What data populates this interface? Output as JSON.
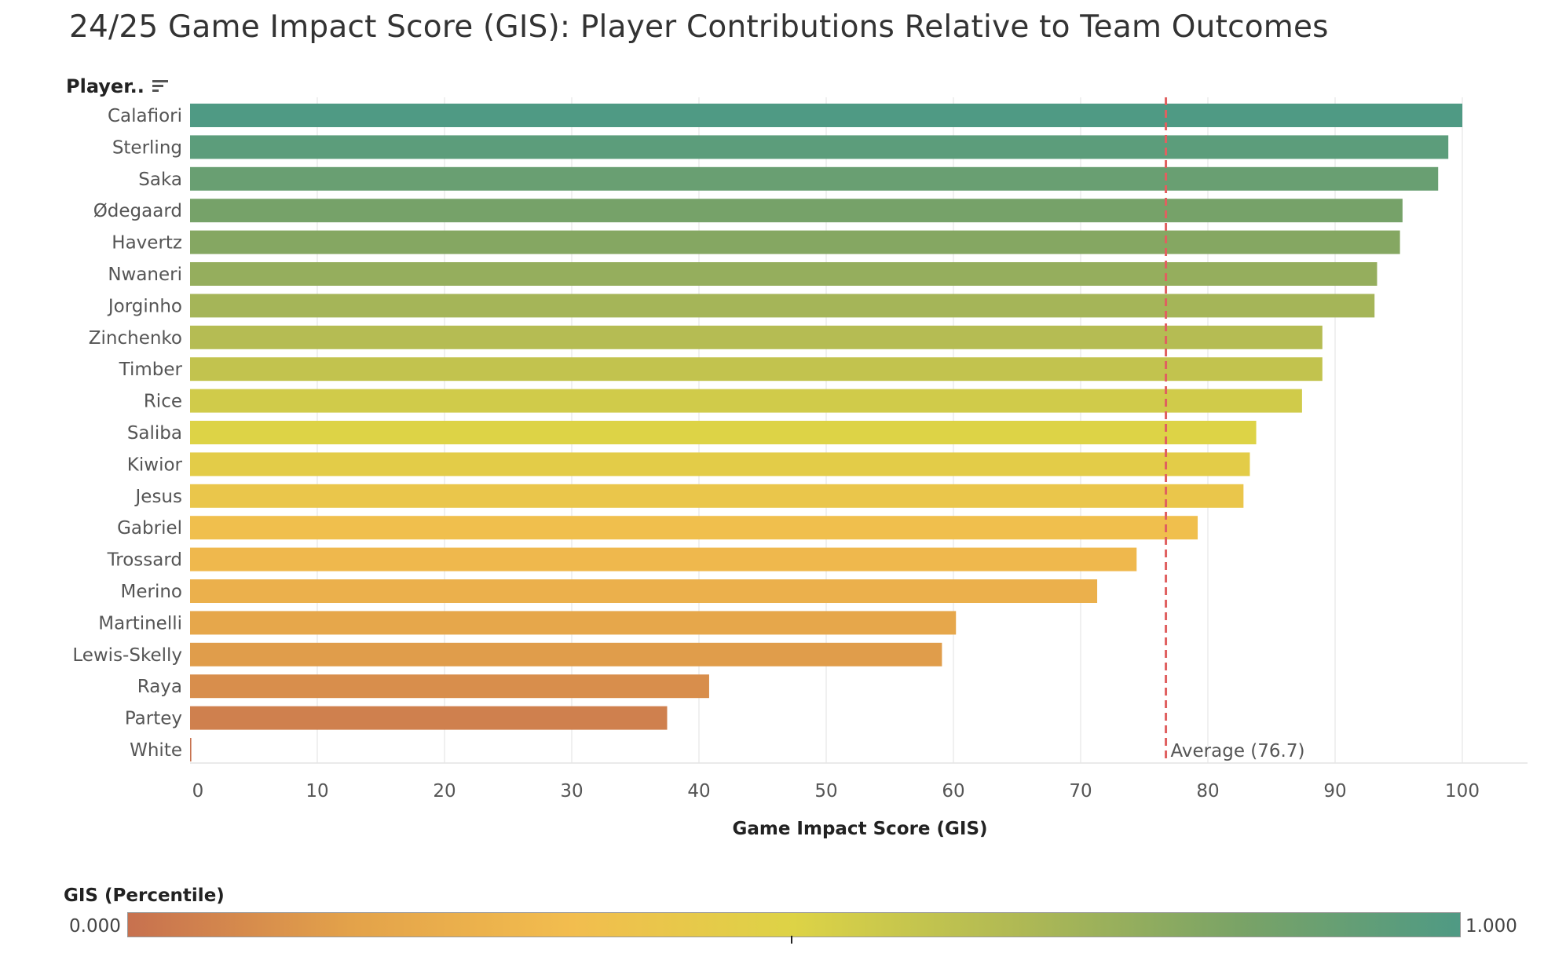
{
  "title": "24/25 Game Impact Score (GIS): Player Contributions Relative to Team Outcomes",
  "y_header": "Player..",
  "chart_data": {
    "type": "bar",
    "orientation": "horizontal",
    "xlabel": "Game Impact Score (GIS)",
    "xlim": [
      0,
      105
    ],
    "xticks": [
      0,
      10,
      20,
      30,
      40,
      50,
      60,
      70,
      80,
      90,
      100
    ],
    "grid": "vertical",
    "categories": [
      "Calafiori",
      "Sterling",
      "Saka",
      "Ødegaard",
      "Havertz",
      "Nwaneri",
      "Jorginho",
      "Zinchenko",
      "Timber",
      "Rice",
      "Saliba",
      "Kiwior",
      "Jesus",
      "Gabriel",
      "Trossard",
      "Merino",
      "Martinelli",
      "Lewis-Skelly",
      "Raya",
      "Partey",
      "White"
    ],
    "values": [
      100,
      98.9,
      98.1,
      95.3,
      95.1,
      93.3,
      93.1,
      89.0,
      89.0,
      87.4,
      83.8,
      83.3,
      82.8,
      79.2,
      74.4,
      71.3,
      60.2,
      59.1,
      40.8,
      37.5,
      0.1
    ],
    "reference_line": {
      "value": 76.7,
      "label": "Average (76.7)",
      "color": "#e06060",
      "style": "dashed"
    },
    "color_legend": {
      "title": "GIS (Percentile)",
      "min_label": "0.000",
      "max_label": "1.000",
      "stops": [
        "#c7714f",
        "#e3a24a",
        "#f2bd4e",
        "#ddd346",
        "#b0b954",
        "#7aa366",
        "#4f9a84"
      ]
    }
  }
}
